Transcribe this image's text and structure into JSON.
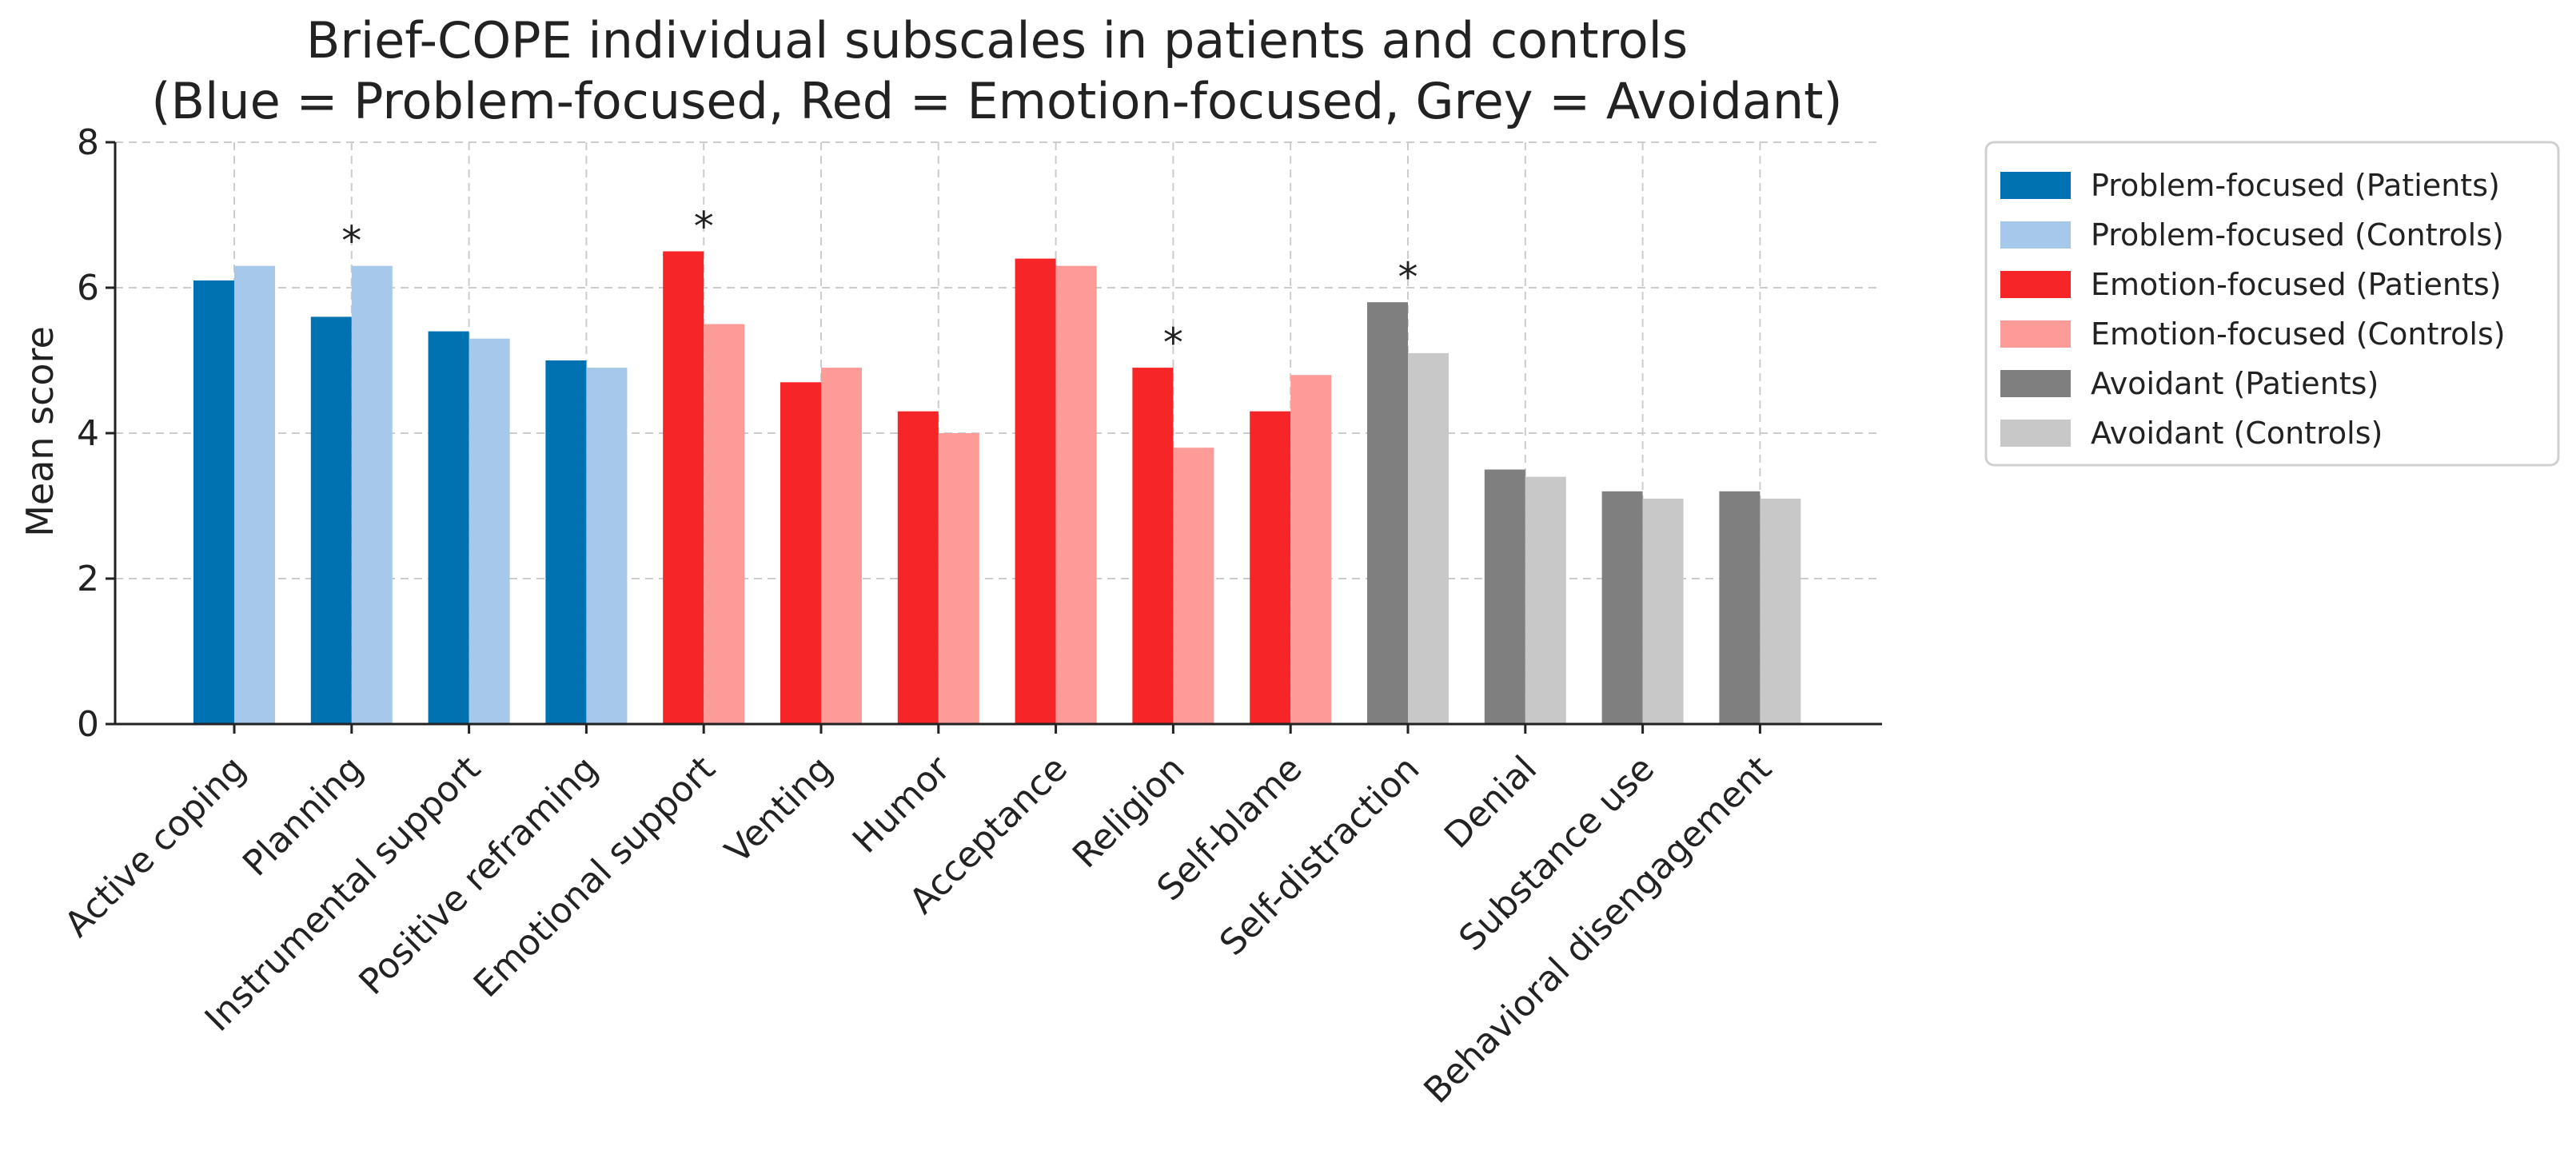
{
  "chart_data": {
    "type": "bar",
    "title": "Brief-COPE individual subscales in patients and controls",
    "subtitle": "(Blue = Problem-focused, Red = Emotion-focused, Grey = Avoidant)",
    "xlabel": "",
    "ylabel": "Mean score",
    "ylim": [
      0,
      8
    ],
    "yticks": [
      0,
      2,
      4,
      6,
      8
    ],
    "grid": true,
    "legend_position": "outside-right-top",
    "categories": [
      "Active coping",
      "Planning",
      "Instrumental support",
      "Positive reframing",
      "Emotional support",
      "Venting",
      "Humor",
      "Acceptance",
      "Religion",
      "Self-blame",
      "Self-distraction",
      "Denial",
      "Substance use",
      "Behavioral disengagement"
    ],
    "category_groups": [
      "problem",
      "problem",
      "problem",
      "problem",
      "emotion",
      "emotion",
      "emotion",
      "emotion",
      "emotion",
      "emotion",
      "avoidant",
      "avoidant",
      "avoidant",
      "avoidant"
    ],
    "series": [
      {
        "name": "Patients",
        "values": [
          6.1,
          5.6,
          5.4,
          5.0,
          6.5,
          4.7,
          4.3,
          6.4,
          4.9,
          4.3,
          5.8,
          3.5,
          3.2,
          3.2
        ]
      },
      {
        "name": "Controls",
        "values": [
          6.3,
          6.3,
          5.3,
          4.9,
          5.5,
          4.9,
          4.0,
          6.3,
          3.8,
          4.8,
          5.1,
          3.4,
          3.1,
          3.1
        ]
      }
    ],
    "significance_marker": "*",
    "significant_categories": [
      "Planning",
      "Emotional support",
      "Religion",
      "Self-distraction"
    ],
    "group_colors": {
      "problem": {
        "Patients": "#0072b2",
        "Controls": "#a6c8ea"
      },
      "emotion": {
        "Patients": "#f52528",
        "Controls": "#fc9b98"
      },
      "avoidant": {
        "Patients": "#7f7f7f",
        "Controls": "#c8c8c8"
      }
    },
    "legend": [
      {
        "label": "Problem-focused (Patients)",
        "color": "#0072b2"
      },
      {
        "label": "Problem-focused (Controls)",
        "color": "#a6c8ea"
      },
      {
        "label": "Emotion-focused (Patients)",
        "color": "#f52528"
      },
      {
        "label": "Emotion-focused (Controls)",
        "color": "#fc9b98"
      },
      {
        "label": "Avoidant (Patients)",
        "color": "#7f7f7f"
      },
      {
        "label": "Avoidant (Controls)",
        "color": "#c8c8c8"
      }
    ]
  }
}
